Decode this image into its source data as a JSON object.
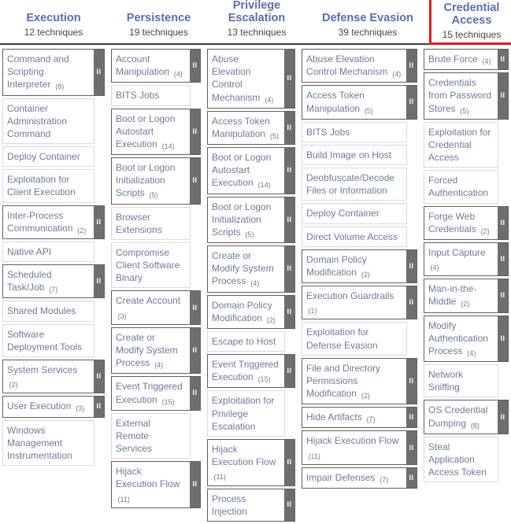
{
  "colors": {
    "tactic_title_text": "#5b6cb2",
    "tactic_count_text": "#454545",
    "technique_text": "#6c7a9b",
    "highlight_box_red": "#e11c1c",
    "subtechnique_handle_bg": "#6e6e6e",
    "header_separator": "#3c3c3c"
  },
  "icons": {
    "subtechniques_handle": "II"
  },
  "tactics": [
    {
      "name": "Execution",
      "count": "12 techniques",
      "highlighted": false,
      "techniques": [
        {
          "label": "Command and Scripting Interpreter",
          "count": "(8)",
          "sub": true
        },
        {
          "label": "Container Administration Command"
        },
        {
          "label": "Deploy Container"
        },
        {
          "label": "Exploitation for Client Execution"
        },
        {
          "label": "Inter-Process Communication",
          "count": "(2)",
          "sub": true
        },
        {
          "label": "Native API"
        },
        {
          "label": "Scheduled Task/Job",
          "count": "(7)",
          "sub": true
        },
        {
          "label": "Shared Modules"
        },
        {
          "label": "Software Deployment Tools"
        },
        {
          "label": "System Services",
          "count": "(2)",
          "sub": true
        },
        {
          "label": "User Execution",
          "count": "(3)",
          "sub": true
        },
        {
          "label": "Windows Management Instrumentation"
        }
      ]
    },
    {
      "name": "Persistence",
      "count": "19 techniques",
      "highlighted": false,
      "techniques": [
        {
          "label": "Account Manipulation",
          "count": "(4)",
          "sub": true
        },
        {
          "label": "BITS Jobs"
        },
        {
          "label": "Boot or Logon Autostart Execution",
          "count": "(14)",
          "sub": true
        },
        {
          "label": "Boot or Logon Initialization Scripts",
          "count": "(5)",
          "sub": true
        },
        {
          "label": "Browser Extensions"
        },
        {
          "label": "Compromise Client Software Binary"
        },
        {
          "label": "Create Account",
          "count": "(3)",
          "sub": true
        },
        {
          "label": "Create or Modify System Process",
          "count": "(4)",
          "sub": true
        },
        {
          "label": "Event Triggered Execution",
          "count": "(15)",
          "sub": true
        },
        {
          "label": "External Remote Services"
        },
        {
          "label": "Hijack Execution Flow",
          "count": "(11)",
          "sub": true
        }
      ]
    },
    {
      "name": "Privilege Escalation",
      "count": "13 techniques",
      "highlighted": false,
      "techniques": [
        {
          "label": "Abuse Elevation Control Mechanism",
          "count": "(4)",
          "sub": true
        },
        {
          "label": "Access Token Manipulation",
          "count": "(5)",
          "sub": true
        },
        {
          "label": "Boot or Logon Autostart Execution",
          "count": "(14)",
          "sub": true
        },
        {
          "label": "Boot or Logon Initialization Scripts",
          "count": "(5)",
          "sub": true
        },
        {
          "label": "Create or Modify System Process",
          "count": "(4)",
          "sub": true
        },
        {
          "label": "Domain Policy Modification",
          "count": "(2)",
          "sub": true
        },
        {
          "label": "Escape to Host"
        },
        {
          "label": "Event Triggered Execution",
          "count": "(15)",
          "sub": true
        },
        {
          "label": "Exploitation for Privilege Escalation"
        },
        {
          "label": "Hijack Execution Flow",
          "count": "(11)",
          "sub": true
        },
        {
          "label": "Process Injection",
          "sub": true
        }
      ]
    },
    {
      "name": "Defense Evasion",
      "count": "39 techniques",
      "highlighted": false,
      "techniques": [
        {
          "label": "Abuse Elevation Control Mechanism",
          "count": "(4)",
          "sub": true
        },
        {
          "label": "Access Token Manipulation",
          "count": "(5)",
          "sub": true
        },
        {
          "label": "BITS Jobs"
        },
        {
          "label": "Build Image on Host"
        },
        {
          "label": "Deobfuscate/Decode Files or Information"
        },
        {
          "label": "Deploy Container"
        },
        {
          "label": "Direct Volume Access"
        },
        {
          "label": "Domain Policy Modification",
          "count": "(2)",
          "sub": true
        },
        {
          "label": "Execution Guardrails",
          "count": "(1)",
          "sub": true
        },
        {
          "label": "Exploitation for Defense Evasion"
        },
        {
          "label": "File and Directory Permissions Modification",
          "count": "(2)",
          "sub": true
        },
        {
          "label": "Hide Artifacts",
          "count": "(7)",
          "sub": true
        },
        {
          "label": "Hijack Execution Flow",
          "count": "(11)",
          "sub": true
        },
        {
          "label": "Impair Defenses",
          "count": "(7)",
          "sub": true
        }
      ]
    },
    {
      "name": "Credential Access",
      "count": "15 techniques",
      "highlighted": true,
      "techniques": [
        {
          "label": "Brute Force",
          "count": "(4)",
          "sub": true
        },
        {
          "label": "Credentials from Password Stores",
          "count": "(5)",
          "sub": true
        },
        {
          "label": "Exploitation for Credential Access"
        },
        {
          "label": "Forced Authentication"
        },
        {
          "label": "Forge Web Credentials",
          "count": "(2)",
          "sub": true
        },
        {
          "label": "Input Capture",
          "count": "(4)",
          "sub": true
        },
        {
          "label": "Man-in-the-Middle",
          "count": "(2)",
          "sub": true
        },
        {
          "label": "Modify Authentication Process",
          "count": "(4)",
          "sub": true
        },
        {
          "label": "Network Sniffing"
        },
        {
          "label": "OS Credential Dumping",
          "count": "(8)",
          "sub": true
        },
        {
          "label": "Steal Application Access Token"
        }
      ]
    }
  ]
}
